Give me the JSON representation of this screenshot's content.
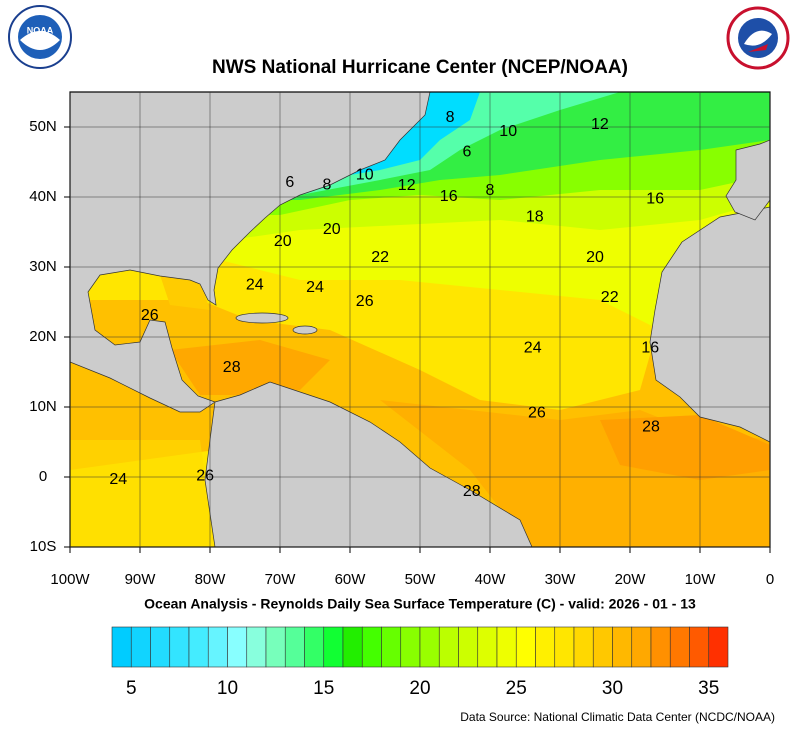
{
  "header": {
    "title": "NWS National Hurricane Center (NCEP/NOAA)"
  },
  "map": {
    "xlim": [
      -100,
      0
    ],
    "ylim": [
      -10,
      55
    ],
    "xticks": [
      {
        "value": -100,
        "label": "100W"
      },
      {
        "value": -90,
        "label": "90W"
      },
      {
        "value": -80,
        "label": "80W"
      },
      {
        "value": -70,
        "label": "70W"
      },
      {
        "value": -60,
        "label": "60W"
      },
      {
        "value": -50,
        "label": "50W"
      },
      {
        "value": -40,
        "label": "40W"
      },
      {
        "value": -30,
        "label": "30W"
      },
      {
        "value": -20,
        "label": "20W"
      },
      {
        "value": -10,
        "label": "10W"
      },
      0
    ],
    "yticks": [
      {
        "value": 50,
        "label": "50N"
      },
      {
        "value": 40,
        "label": "40N"
      },
      {
        "value": 30,
        "label": "30N"
      },
      {
        "value": 20,
        "label": "20N"
      },
      {
        "value": 10,
        "label": "10N"
      },
      0,
      {
        "value": -10,
        "label": "10S"
      }
    ],
    "contour_labels": [
      {
        "value": 8,
        "lon": -45.7,
        "lat": 51.3
      },
      {
        "value": 10,
        "lon": -37.4,
        "lat": 49.3
      },
      {
        "value": 12,
        "lon": -24.3,
        "lat": 50.3
      },
      {
        "value": 6,
        "lon": -43.3,
        "lat": 46.4
      },
      {
        "value": 6,
        "lon": -68.6,
        "lat": 42
      },
      {
        "value": 8,
        "lon": -63.3,
        "lat": 41.7
      },
      {
        "value": 10,
        "lon": -57.9,
        "lat": 43.1
      },
      {
        "value": 12,
        "lon": -51.9,
        "lat": 41.6
      },
      {
        "value": 16,
        "lon": -45.9,
        "lat": 40
      },
      {
        "value": 8,
        "lon": -40,
        "lat": 40.9
      },
      {
        "value": 18,
        "lon": -33.6,
        "lat": 37.1
      },
      {
        "value": 16,
        "lon": -16.4,
        "lat": 39.7
      },
      {
        "value": 20,
        "lon": -69.6,
        "lat": 33.6
      },
      {
        "value": 20,
        "lon": -62.6,
        "lat": 35.3
      },
      {
        "value": 22,
        "lon": -55.7,
        "lat": 31.3
      },
      {
        "value": 20,
        "lon": -25,
        "lat": 31.3
      },
      {
        "value": 24,
        "lon": -73.6,
        "lat": 27.4
      },
      {
        "value": 24,
        "lon": -65,
        "lat": 27
      },
      {
        "value": 26,
        "lon": -57.9,
        "lat": 25
      },
      {
        "value": 22,
        "lon": -22.9,
        "lat": 25.6
      },
      {
        "value": 26,
        "lon": -88.6,
        "lat": 23
      },
      {
        "value": 24,
        "lon": -33.9,
        "lat": 18.4
      },
      {
        "value": 16,
        "lon": -17.1,
        "lat": 18.4
      },
      {
        "value": 28,
        "lon": -76.9,
        "lat": 15.6
      },
      {
        "value": 26,
        "lon": -33.3,
        "lat": 9.1
      },
      {
        "value": 28,
        "lon": -17,
        "lat": 7.1
      },
      {
        "value": 24,
        "lon": -93.1,
        "lat": -0.4
      },
      {
        "value": 26,
        "lon": -80.7,
        "lat": 0.1
      },
      {
        "value": 28,
        "lon": -42.6,
        "lat": -2.1
      }
    ],
    "subtitle": "Ocean Analysis - Reynolds Daily Sea Surface Temperature (C) - valid: 2026 - 01 - 13"
  },
  "colorbar": {
    "range": [
      4,
      36
    ],
    "ticks": [
      5,
      10,
      15,
      20,
      25,
      30,
      35
    ],
    "colors": [
      "#00ccff",
      "#11d4ff",
      "#22dcff",
      "#33e4ff",
      "#44ecff",
      "#66f4ff",
      "#88ffff",
      "#88ffdd",
      "#77ffbb",
      "#55ff99",
      "#33ff66",
      "#11ff33",
      "#22ee00",
      "#44ff00",
      "#66ff00",
      "#88ff00",
      "#99ff00",
      "#bbff00",
      "#ccff00",
      "#ddff00",
      "#eeff00",
      "#ffff00",
      "#fff000",
      "#ffe600",
      "#ffd800",
      "#ffc800",
      "#ffb800",
      "#ffa800",
      "#ff9000",
      "#ff7800",
      "#ff5a00",
      "#ff3000"
    ]
  },
  "footer": {
    "source": "Data Source: National Climatic Data Center (NCDC/NOAA)"
  }
}
